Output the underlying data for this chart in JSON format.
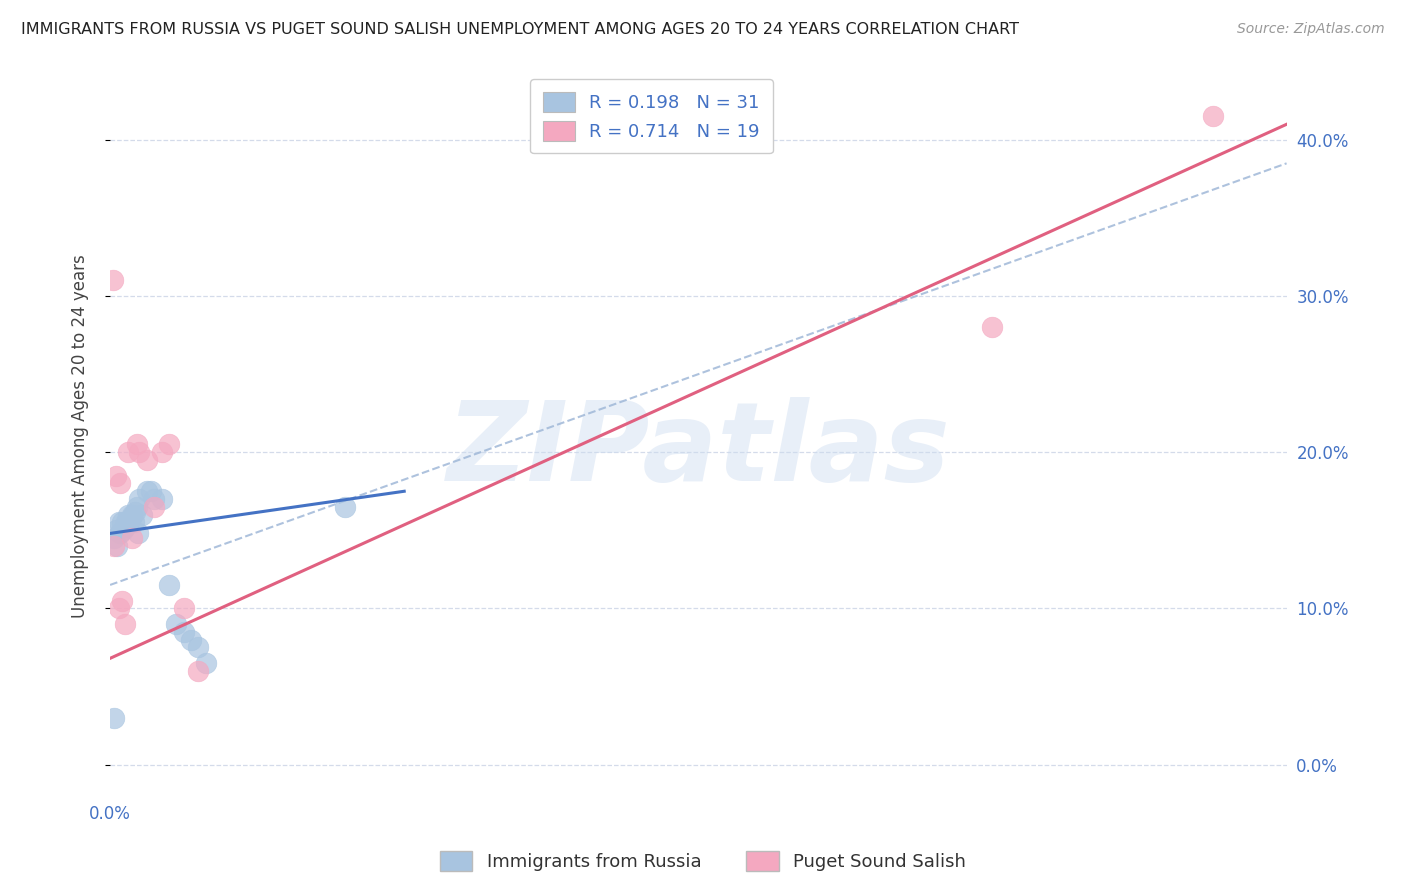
{
  "title": "IMMIGRANTS FROM RUSSIA VS PUGET SOUND SALISH UNEMPLOYMENT AMONG AGES 20 TO 24 YEARS CORRELATION CHART",
  "source": "Source: ZipAtlas.com",
  "ylabel": "Unemployment Among Ages 20 to 24 years",
  "background_color": "#ffffff",
  "watermark": "ZIPatlas",
  "legend1_label": "R = 0.198   N = 31",
  "legend2_label": "R = 0.714   N = 19",
  "blue_color": "#a8c4e0",
  "pink_color": "#f4a8c0",
  "blue_line_color": "#4472c4",
  "pink_line_color": "#e06080",
  "axis_label_color": "#4472c4",
  "xmin": 0.0,
  "xmax": 0.8,
  "ymin": -0.02,
  "ymax": 0.44,
  "ytick_vals": [
    0.0,
    0.1,
    0.2,
    0.3,
    0.4
  ],
  "blue_scatter_x": [
    0.003,
    0.004,
    0.005,
    0.006,
    0.007,
    0.008,
    0.009,
    0.01,
    0.011,
    0.012,
    0.013,
    0.014,
    0.015,
    0.016,
    0.017,
    0.018,
    0.019,
    0.02,
    0.022,
    0.025,
    0.028,
    0.03,
    0.035,
    0.04,
    0.045,
    0.05,
    0.055,
    0.06,
    0.065,
    0.16,
    0.003
  ],
  "blue_scatter_y": [
    0.145,
    0.15,
    0.14,
    0.155,
    0.148,
    0.155,
    0.15,
    0.152,
    0.155,
    0.16,
    0.155,
    0.158,
    0.16,
    0.155,
    0.162,
    0.165,
    0.148,
    0.17,
    0.16,
    0.175,
    0.175,
    0.17,
    0.17,
    0.115,
    0.09,
    0.085,
    0.08,
    0.075,
    0.065,
    0.165,
    0.03
  ],
  "pink_scatter_x": [
    0.002,
    0.004,
    0.006,
    0.007,
    0.01,
    0.012,
    0.015,
    0.018,
    0.02,
    0.025,
    0.03,
    0.035,
    0.04,
    0.05,
    0.06,
    0.6,
    0.75,
    0.003,
    0.008
  ],
  "pink_scatter_y": [
    0.31,
    0.185,
    0.1,
    0.18,
    0.09,
    0.2,
    0.145,
    0.205,
    0.2,
    0.195,
    0.165,
    0.2,
    0.205,
    0.1,
    0.06,
    0.28,
    0.415,
    0.14,
    0.105
  ],
  "blue_line_x": [
    0.0,
    0.2
  ],
  "blue_line_y": [
    0.148,
    0.175
  ],
  "pink_line_x": [
    0.0,
    0.8
  ],
  "pink_line_y": [
    0.068,
    0.41
  ],
  "dashed_line_x": [
    0.0,
    0.8
  ],
  "dashed_line_y": [
    0.115,
    0.385
  ],
  "legend_blue_label": "Immigrants from Russia",
  "legend_pink_label": "Puget Sound Salish"
}
